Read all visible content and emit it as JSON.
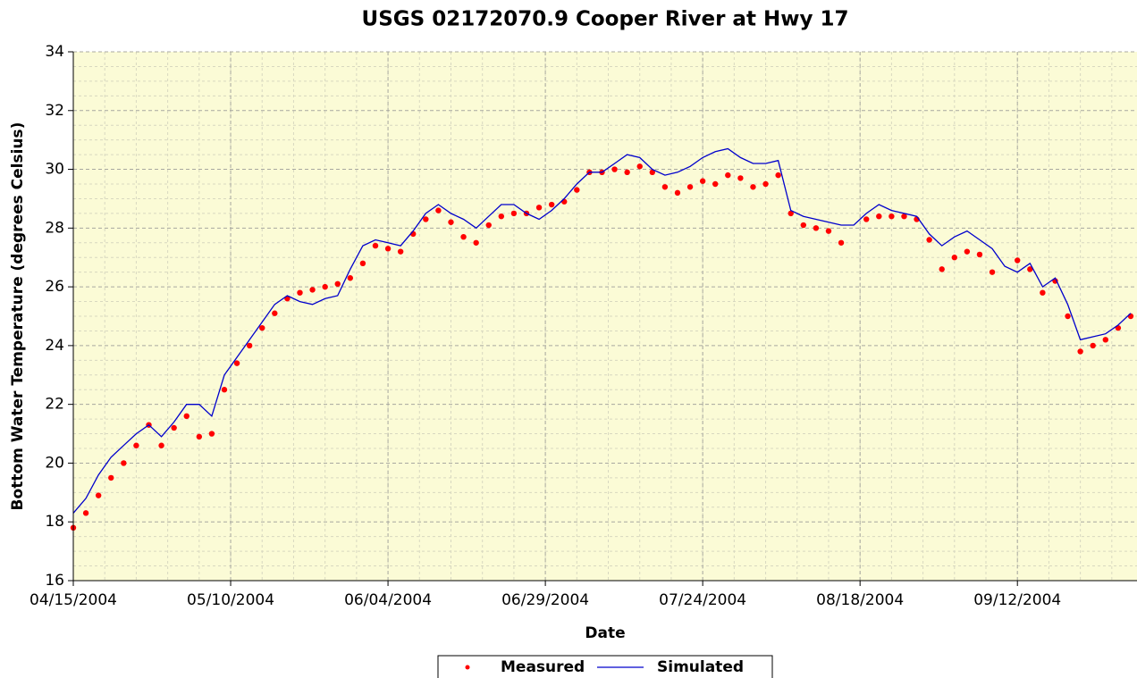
{
  "chart_data": {
    "type": "line",
    "title": "USGS 02172070.9 Cooper River at Hwy 17",
    "x_label": "Date",
    "y_label": "Bottom Water Temperature (degrees Celsius)",
    "xlim": [
      "2004-04-15",
      "2004-10-01"
    ],
    "xticks": [
      {
        "value": "2004-04-15",
        "label": "04/15/2004"
      },
      {
        "value": "2004-05-10",
        "label": "05/10/2004"
      },
      {
        "value": "2004-06-04",
        "label": "06/04/2004"
      },
      {
        "value": "2004-06-29",
        "label": "06/29/2004"
      },
      {
        "value": "2004-07-24",
        "label": "07/24/2004"
      },
      {
        "value": "2004-08-18",
        "label": "08/18/2004"
      },
      {
        "value": "2004-09-12",
        "label": "09/12/2004"
      }
    ],
    "ylim": [
      16,
      34
    ],
    "yticks": [
      16,
      18,
      20,
      22,
      24,
      26,
      28,
      30,
      32,
      34
    ],
    "grid": true,
    "legend": "bottom",
    "x": [
      "2004-04-15",
      "2004-04-17",
      "2004-04-19",
      "2004-04-21",
      "2004-04-23",
      "2004-04-25",
      "2004-04-27",
      "2004-04-29",
      "2004-05-01",
      "2004-05-03",
      "2004-05-05",
      "2004-05-07",
      "2004-05-09",
      "2004-05-11",
      "2004-05-13",
      "2004-05-15",
      "2004-05-17",
      "2004-05-19",
      "2004-05-21",
      "2004-05-23",
      "2004-05-25",
      "2004-05-27",
      "2004-05-29",
      "2004-05-31",
      "2004-06-02",
      "2004-06-04",
      "2004-06-06",
      "2004-06-08",
      "2004-06-10",
      "2004-06-12",
      "2004-06-14",
      "2004-06-16",
      "2004-06-18",
      "2004-06-20",
      "2004-06-22",
      "2004-06-24",
      "2004-06-26",
      "2004-06-28",
      "2004-06-30",
      "2004-07-02",
      "2004-07-04",
      "2004-07-06",
      "2004-07-08",
      "2004-07-10",
      "2004-07-12",
      "2004-07-14",
      "2004-07-16",
      "2004-07-18",
      "2004-07-20",
      "2004-07-22",
      "2004-07-24",
      "2004-07-26",
      "2004-07-28",
      "2004-07-30",
      "2004-08-01",
      "2004-08-03",
      "2004-08-05",
      "2004-08-07",
      "2004-08-09",
      "2004-08-11",
      "2004-08-13",
      "2004-08-15",
      "2004-08-17",
      "2004-08-19",
      "2004-08-21",
      "2004-08-23",
      "2004-08-25",
      "2004-08-27",
      "2004-08-29",
      "2004-08-31",
      "2004-09-02",
      "2004-09-04",
      "2004-09-06",
      "2004-09-08",
      "2004-09-10",
      "2004-09-12",
      "2004-09-14",
      "2004-09-16",
      "2004-09-18",
      "2004-09-20",
      "2004-09-22",
      "2004-09-24",
      "2004-09-26",
      "2004-09-28",
      "2004-09-30"
    ],
    "series": [
      {
        "name": "Measured",
        "color": "#ff0000",
        "mode": "markers",
        "values": [
          17.8,
          18.3,
          18.9,
          19.5,
          20.0,
          20.6,
          21.3,
          20.6,
          21.2,
          21.6,
          20.9,
          21.0,
          22.5,
          23.4,
          24.0,
          24.6,
          25.1,
          25.6,
          25.8,
          25.9,
          26.0,
          26.1,
          26.3,
          26.8,
          27.4,
          27.3,
          27.2,
          27.8,
          28.3,
          28.6,
          28.2,
          27.7,
          27.5,
          28.1,
          28.4,
          28.5,
          28.5,
          28.7,
          28.8,
          28.9,
          29.3,
          29.9,
          29.9,
          30.0,
          29.9,
          30.1,
          29.9,
          29.4,
          29.2,
          29.4,
          29.6,
          29.5,
          29.8,
          29.7,
          29.4,
          29.5,
          29.8,
          28.5,
          28.1,
          28.0,
          27.9,
          27.5,
          null,
          28.3,
          28.4,
          28.4,
          28.4,
          28.3,
          27.6,
          26.6,
          27.0,
          27.2,
          27.1,
          26.5,
          null,
          26.9,
          26.6,
          25.8,
          26.2,
          25.0,
          23.8,
          24.0,
          24.2,
          24.6,
          25.0
        ]
      },
      {
        "name": "Simulated",
        "color": "#0000cc",
        "mode": "line",
        "values": [
          18.3,
          18.8,
          19.6,
          20.2,
          20.6,
          21.0,
          21.3,
          20.9,
          21.4,
          22.0,
          22.0,
          21.6,
          23.0,
          23.6,
          24.2,
          24.8,
          25.4,
          25.7,
          25.5,
          25.4,
          25.6,
          25.7,
          26.6,
          27.4,
          27.6,
          27.5,
          27.4,
          27.9,
          28.5,
          28.8,
          28.5,
          28.3,
          28.0,
          28.4,
          28.8,
          28.8,
          28.5,
          28.3,
          28.6,
          29.0,
          29.5,
          29.9,
          29.9,
          30.2,
          30.5,
          30.4,
          30.0,
          29.8,
          29.9,
          30.1,
          30.4,
          30.6,
          30.7,
          30.4,
          30.2,
          30.2,
          30.3,
          28.6,
          28.4,
          28.3,
          28.2,
          28.1,
          28.1,
          28.5,
          28.8,
          28.6,
          28.5,
          28.4,
          27.8,
          27.4,
          27.7,
          27.9,
          27.6,
          27.3,
          26.7,
          26.5,
          26.8,
          26.0,
          26.3,
          25.4,
          24.2,
          24.3,
          24.4,
          24.7,
          25.1
        ]
      }
    ]
  }
}
